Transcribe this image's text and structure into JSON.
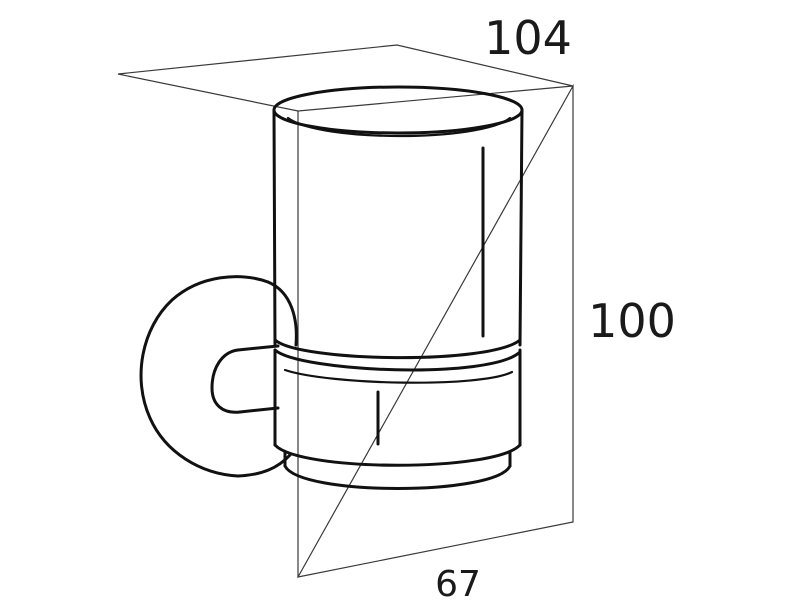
{
  "dimensions": {
    "width": "104",
    "height": "100",
    "depth": "67"
  },
  "product": {
    "wall_rosette": "wall-mount",
    "holder": "tumbler-holder",
    "tumbler": "glass-tumbler"
  }
}
